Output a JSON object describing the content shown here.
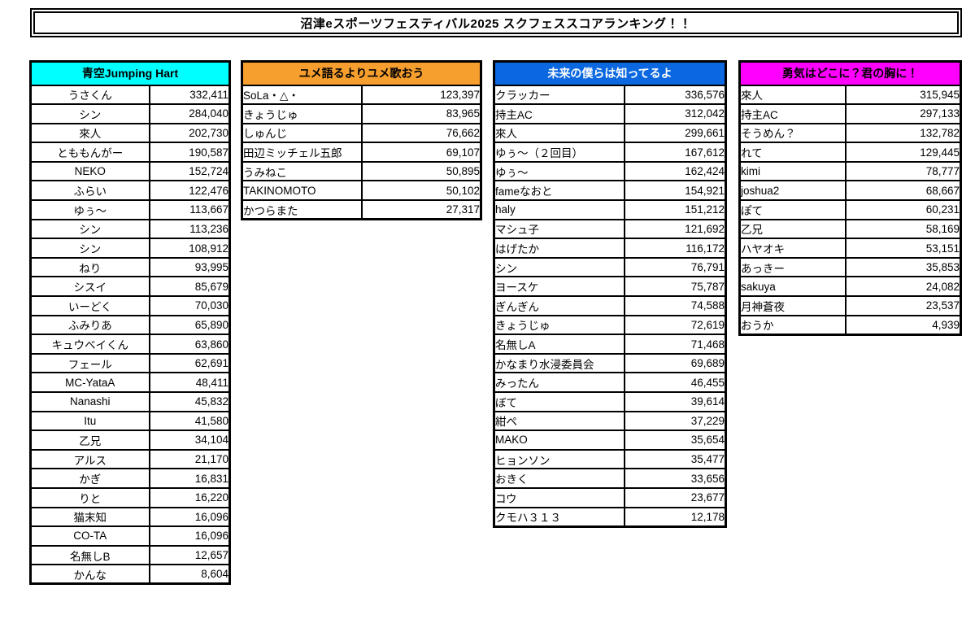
{
  "page": {
    "title": "沼津eスポーツフェスティバル2025 スクフェススコアランキング！！",
    "background": "#FFFFFF"
  },
  "tables": [
    {
      "title": "青空Jumping Hart",
      "header_bg": "#00FFFF",
      "header_text": "#000000",
      "name_align": "center",
      "rows": [
        {
          "name": "うさくん",
          "score": "332,411"
        },
        {
          "name": "シン",
          "score": "284,040"
        },
        {
          "name": "來人",
          "score": "202,730"
        },
        {
          "name": "とももんがー",
          "score": "190,587"
        },
        {
          "name": "NEKO",
          "score": "152,724"
        },
        {
          "name": "ふらい",
          "score": "122,476"
        },
        {
          "name": "ゆぅ～",
          "score": "113,667"
        },
        {
          "name": "シン",
          "score": "113,236"
        },
        {
          "name": "シン",
          "score": "108,912"
        },
        {
          "name": "ねり",
          "score": "93,995"
        },
        {
          "name": "シスイ",
          "score": "85,679"
        },
        {
          "name": "いーどく",
          "score": "70,030"
        },
        {
          "name": "ふみりあ",
          "score": "65,890"
        },
        {
          "name": "キュウベイくん",
          "score": "63,860"
        },
        {
          "name": "フェール",
          "score": "62,691"
        },
        {
          "name": "MC-YataA",
          "score": "48,411"
        },
        {
          "name": "Nanashi",
          "score": "45,832"
        },
        {
          "name": "Itu",
          "score": "41,580"
        },
        {
          "name": "乙兄",
          "score": "34,104"
        },
        {
          "name": "アルス",
          "score": "21,170"
        },
        {
          "name": "かぎ",
          "score": "16,831"
        },
        {
          "name": "りと",
          "score": "16,220"
        },
        {
          "name": "猫末知",
          "score": "16,096"
        },
        {
          "name": "CO-TA",
          "score": "16,096"
        },
        {
          "name": "名無しB",
          "score": "12,657"
        },
        {
          "name": "かんな",
          "score": "8,604"
        }
      ]
    },
    {
      "title": "ユメ語るよりユメ歌おう",
      "header_bg": "#F79F2E",
      "header_text": "#000000",
      "name_align": "left",
      "rows": [
        {
          "name": "SoLa・△・",
          "score": "123,397"
        },
        {
          "name": "きょうじゅ",
          "score": "83,965"
        },
        {
          "name": "しゅんじ",
          "score": "76,662"
        },
        {
          "name": "田辺ミッチェル五郎",
          "score": "69,107"
        },
        {
          "name": "うみねこ",
          "score": "50,895"
        },
        {
          "name": "TAKINOMOTO",
          "score": "50,102"
        },
        {
          "name": "かつらまた",
          "score": "27,317"
        }
      ]
    },
    {
      "title": "未来の僕らは知ってるよ",
      "header_bg": "#0B68E0",
      "header_text": "#FFFFFF",
      "name_align": "left",
      "rows": [
        {
          "name": "クラッカー",
          "score": "336,576"
        },
        {
          "name": "持主AC",
          "score": "312,042"
        },
        {
          "name": "來人",
          "score": "299,661"
        },
        {
          "name": "ゆぅ～（２回目）",
          "score": "167,612"
        },
        {
          "name": "ゆぅ～",
          "score": "162,424"
        },
        {
          "name": "fameなおと",
          "score": "154,921"
        },
        {
          "name": "haly",
          "score": "151,212"
        },
        {
          "name": "マシュ子",
          "score": "121,692"
        },
        {
          "name": "はげたか",
          "score": "116,172"
        },
        {
          "name": "シン",
          "score": "76,791"
        },
        {
          "name": "ヨースケ",
          "score": "75,787"
        },
        {
          "name": "ぎんぎん",
          "score": "74,588"
        },
        {
          "name": "きょうじゅ",
          "score": "72,619"
        },
        {
          "name": "名無しA",
          "score": "71,468"
        },
        {
          "name": "かなまり水浸委員会",
          "score": "69,689"
        },
        {
          "name": "みったん",
          "score": "46,455"
        },
        {
          "name": "ぼて",
          "score": "39,614"
        },
        {
          "name": "紺ぺ",
          "score": "37,229"
        },
        {
          "name": "MAKO",
          "score": "35,654"
        },
        {
          "name": "ヒョンソン",
          "score": "35,477"
        },
        {
          "name": "おきく",
          "score": "33,656"
        },
        {
          "name": "コウ",
          "score": "23,677"
        },
        {
          "name": "クモハ３１３",
          "score": "12,178"
        }
      ]
    },
    {
      "title": "勇気はどこに？君の胸に！",
      "header_bg": "#FF00FF",
      "header_text": "#000000",
      "name_align": "left",
      "rows": [
        {
          "name": "來人",
          "score": "315,945"
        },
        {
          "name": "持主AC",
          "score": "297,133"
        },
        {
          "name": "そうめん？",
          "score": "132,782"
        },
        {
          "name": "れて",
          "score": "129,445"
        },
        {
          "name": "kimi",
          "score": "78,777"
        },
        {
          "name": "joshua2",
          "score": "68,667"
        },
        {
          "name": "ぽて",
          "score": "60,231"
        },
        {
          "name": "乙兄",
          "score": "58,169"
        },
        {
          "name": "ハヤオキ",
          "score": "53,151"
        },
        {
          "name": "あっきー",
          "score": "35,853"
        },
        {
          "name": "sakuya",
          "score": "24,082"
        },
        {
          "name": "月神蒼夜",
          "score": "23,537"
        },
        {
          "name": "おうか",
          "score": "4,939"
        }
      ]
    }
  ]
}
